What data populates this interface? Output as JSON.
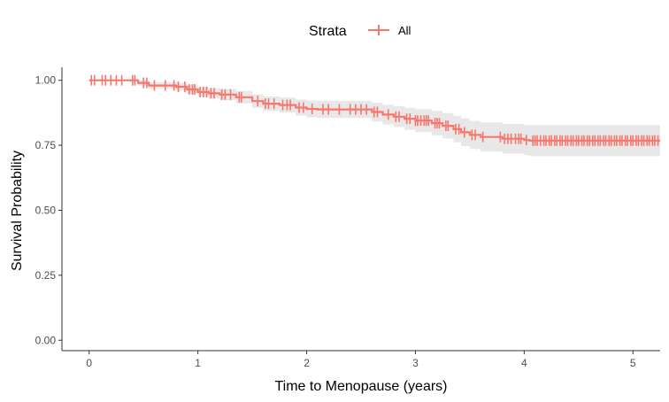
{
  "chart_data": {
    "type": "line",
    "subtype": "kaplan-meier",
    "title": "",
    "xlabel": "Time to Menopause (years)",
    "ylabel": "Survival Probability",
    "xlim": [
      -0.25,
      5.25
    ],
    "ylim": [
      -0.04,
      1.05
    ],
    "xticks": [
      0,
      1,
      2,
      3,
      4,
      5
    ],
    "xtick_labels": [
      "0",
      "1",
      "2",
      "3",
      "4",
      "5"
    ],
    "yticks": [
      0.0,
      0.25,
      0.5,
      0.75,
      1.0
    ],
    "ytick_labels": [
      "0.00",
      "0.25",
      "0.50",
      "0.75",
      "1.00"
    ],
    "grid": false,
    "legend": {
      "title": "Strata",
      "position": "top",
      "entries": [
        "All"
      ]
    },
    "series": [
      {
        "name": "All",
        "color": "#F8766D",
        "ci_color": "#D9D9D9",
        "step_x": [
          0,
          0.45,
          0.55,
          0.8,
          0.9,
          1.0,
          1.1,
          1.2,
          1.35,
          1.5,
          1.6,
          1.75,
          1.9,
          2.0,
          2.1,
          2.6,
          2.7,
          2.8,
          2.9,
          3.0,
          3.15,
          3.25,
          3.35,
          3.42,
          3.5,
          3.6,
          3.8,
          4.0,
          4.05,
          5.25
        ],
        "step_y": [
          1.0,
          0.99,
          0.98,
          0.975,
          0.965,
          0.955,
          0.95,
          0.945,
          0.935,
          0.92,
          0.91,
          0.905,
          0.895,
          0.89,
          0.888,
          0.878,
          0.868,
          0.86,
          0.852,
          0.845,
          0.835,
          0.825,
          0.812,
          0.8,
          0.79,
          0.782,
          0.775,
          0.77,
          0.768,
          0.768
        ],
        "ci_lower": [
          1.0,
          0.98,
          0.967,
          0.96,
          0.948,
          0.936,
          0.93,
          0.923,
          0.911,
          0.894,
          0.882,
          0.876,
          0.864,
          0.858,
          0.855,
          0.842,
          0.83,
          0.82,
          0.81,
          0.801,
          0.788,
          0.776,
          0.761,
          0.747,
          0.736,
          0.726,
          0.718,
          0.712,
          0.708,
          0.706
        ],
        "ci_upper": [
          1.0,
          1.0,
          0.993,
          0.99,
          0.982,
          0.974,
          0.97,
          0.967,
          0.959,
          0.946,
          0.938,
          0.934,
          0.926,
          0.922,
          0.921,
          0.914,
          0.906,
          0.9,
          0.894,
          0.889,
          0.882,
          0.874,
          0.863,
          0.853,
          0.844,
          0.838,
          0.832,
          0.828,
          0.828,
          0.83
        ],
        "censor_times": [
          0.02,
          0.05,
          0.12,
          0.15,
          0.2,
          0.25,
          0.3,
          0.4,
          0.42,
          0.5,
          0.53,
          0.6,
          0.7,
          0.78,
          0.82,
          0.88,
          0.92,
          0.95,
          0.97,
          1.02,
          1.05,
          1.08,
          1.12,
          1.15,
          1.22,
          1.25,
          1.3,
          1.38,
          1.4,
          1.55,
          1.62,
          1.65,
          1.7,
          1.78,
          1.82,
          1.85,
          1.93,
          1.97,
          2.05,
          2.15,
          2.2,
          2.3,
          2.4,
          2.45,
          2.5,
          2.55,
          2.62,
          2.65,
          2.75,
          2.82,
          2.85,
          2.92,
          2.95,
          3.0,
          3.02,
          3.05,
          3.08,
          3.1,
          3.12,
          3.18,
          3.2,
          3.22,
          3.28,
          3.3,
          3.37,
          3.4,
          3.45,
          3.52,
          3.55,
          3.62,
          3.78,
          3.82,
          3.85,
          3.88,
          3.92,
          3.95,
          3.97,
          4.02,
          4.08,
          4.1,
          4.12,
          4.15,
          4.18,
          4.2,
          4.23,
          4.25,
          4.28,
          4.3,
          4.33,
          4.35,
          4.38,
          4.4,
          4.43,
          4.45,
          4.48,
          4.5,
          4.53,
          4.55,
          4.58,
          4.6,
          4.63,
          4.65,
          4.68,
          4.7,
          4.73,
          4.75,
          4.78,
          4.8,
          4.83,
          4.85,
          4.88,
          4.9,
          4.93,
          4.95,
          4.98,
          5.0,
          5.03,
          5.05,
          5.08,
          5.1,
          5.13,
          5.15,
          5.18,
          5.2,
          5.23
        ]
      }
    ]
  }
}
